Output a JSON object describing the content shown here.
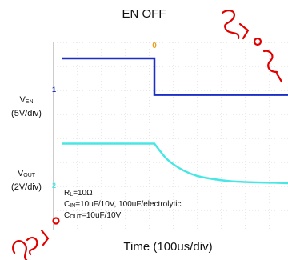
{
  "title": "EN OFF",
  "xlabel": "Time (100us/div)",
  "labels": {
    "ven_main": "V",
    "ven_sub": "EN",
    "ven_scale": "(5V/div)",
    "vout_main": "V",
    "vout_sub": "OUT",
    "vout_scale": "(2V/div)"
  },
  "notes": {
    "rl_main": "R",
    "rl_sub": "L",
    "rl_value": "=10Ω",
    "cin_main": "C",
    "cin_sub": "IN",
    "cin_value": "=10uF/10V, 100uF/electrolytic",
    "cout_main": "C",
    "cout_sub": "OUT",
    "cout_value": "=10uF/10V"
  },
  "markers": {
    "trigger": "0",
    "ch1": "1",
    "ch2": "2"
  },
  "colors": {
    "ven_trace": "#1a2fc8",
    "vout_trace": "#49e6e6",
    "grid": "#c8c8c8",
    "trigger": "#e8a020",
    "watermark": "#e00000"
  },
  "chart_data": {
    "type": "line",
    "x_unit": "us",
    "time_per_div_us": 100,
    "series": [
      {
        "name": "VEN",
        "volts_per_div": 5,
        "x": [
          -550,
          0,
          0,
          1000
        ],
        "y": [
          10.0,
          10.0,
          2.4,
          2.4
        ]
      },
      {
        "name": "VOUT",
        "volts_per_div": 2,
        "x": [
          -550,
          0,
          50,
          100,
          150,
          200,
          300,
          400,
          500,
          600,
          800
        ],
        "y": [
          3.3,
          3.3,
          2.05,
          1.3,
          0.8,
          0.5,
          0.2,
          0.08,
          0.04,
          0.0,
          0.0
        ]
      }
    ]
  }
}
